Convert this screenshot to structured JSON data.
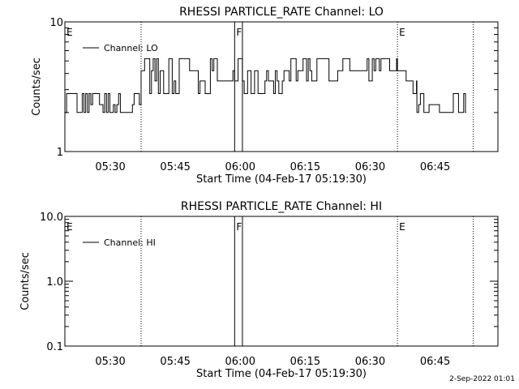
{
  "footer": {
    "generated": "2-Sep-2022 01:01"
  },
  "colors": {
    "background": "#ffffff",
    "foreground": "#000000"
  },
  "chart_data": [
    {
      "type": "line",
      "title": "RHESSI PARTICLE_RATE Channel: LO",
      "xlabel": "Start Time (04-Feb-17 05:19:30)",
      "ylabel": "Counts/sec",
      "yscale": "log",
      "ylim": [
        1,
        10
      ],
      "ytick_labels": [
        "1",
        "10"
      ],
      "xlim_minutes": [
        0,
        100
      ],
      "xtick_labels": [
        "05:30",
        "05:45",
        "06:00",
        "06:15",
        "06:30",
        "06:45"
      ],
      "xtick_minutes": [
        10.5,
        25.5,
        40.5,
        55.5,
        70.5,
        85.5
      ],
      "legend": {
        "entries": [
          "Channel: LO"
        ],
        "position": "top-left"
      },
      "event_markers": [
        {
          "label": "E",
          "minute": 0,
          "style": "dotted"
        },
        {
          "label": "",
          "minute": 17.6,
          "style": "dotted"
        },
        {
          "label": "F",
          "minute": 39.2,
          "style": "solid"
        },
        {
          "label": "",
          "minute": 41.0,
          "style": "solid"
        },
        {
          "label": "E",
          "minute": 76.8,
          "style": "dotted"
        },
        {
          "label": "",
          "minute": 94.3,
          "style": "dotted"
        }
      ],
      "series": [
        {
          "name": "Channel: LO",
          "segments": [
            {
              "x_min": [
                0,
                17.6
              ],
              "levels": [
                2.0,
                2.3,
                2.8
              ]
            },
            {
              "x_min": [
                17.6,
                41.0
              ],
              "levels": [
                2.8,
                3.5,
                4.2,
                5.2
              ]
            },
            {
              "x_min": [
                41.0,
                51.0
              ],
              "levels": [
                2.8,
                3.5,
                4.2
              ]
            },
            {
              "x_min": [
                51.0,
                76.8
              ],
              "levels": [
                3.5,
                4.2,
                5.2
              ]
            },
            {
              "x_min": [
                76.8,
                81.3
              ],
              "levels": [
                2.8,
                3.5,
                4.2
              ]
            },
            {
              "x_min": [
                81.3,
                92.7
              ],
              "levels": [
                2.0,
                2.3,
                2.8
              ]
            }
          ]
        }
      ]
    },
    {
      "type": "line",
      "title": "RHESSI PARTICLE_RATE Channel: HI",
      "xlabel": "Start Time (04-Feb-17 05:19:30)",
      "ylabel": "Counts/sec",
      "yscale": "log",
      "ylim": [
        0.1,
        10
      ],
      "ytick_labels": [
        "0.1",
        "1.0",
        "10.0"
      ],
      "xlim_minutes": [
        0,
        100
      ],
      "xtick_labels": [
        "05:30",
        "05:45",
        "06:00",
        "06:15",
        "06:30",
        "06:45"
      ],
      "xtick_minutes": [
        10.5,
        25.5,
        40.5,
        55.5,
        70.5,
        85.5
      ],
      "legend": {
        "entries": [
          "Channel: HI"
        ],
        "position": "top-left"
      },
      "event_markers": [
        {
          "label": "E",
          "minute": 0,
          "style": "dotted"
        },
        {
          "label": "",
          "minute": 17.6,
          "style": "dotted"
        },
        {
          "label": "F",
          "minute": 39.2,
          "style": "solid"
        },
        {
          "label": "",
          "minute": 41.0,
          "style": "solid"
        },
        {
          "label": "E",
          "minute": 76.8,
          "style": "dotted"
        },
        {
          "label": "",
          "minute": 94.3,
          "style": "dotted"
        }
      ],
      "series": [
        {
          "name": "Channel: HI",
          "segments": []
        }
      ]
    }
  ]
}
